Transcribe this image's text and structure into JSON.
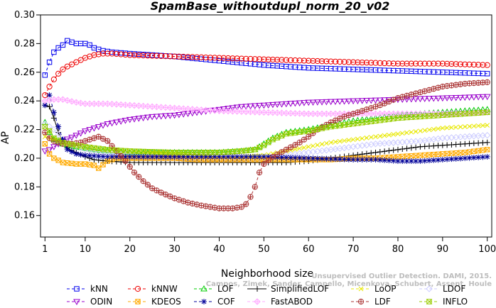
{
  "chart_data": {
    "type": "line",
    "title": "SpamBase_withoutdupl_norm_20_v02",
    "xlabel": "Neighborhood size",
    "ylabel": "AP",
    "xlim": [
      0,
      101
    ],
    "ylim": [
      0.145,
      0.3
    ],
    "xticks": [
      1,
      10,
      20,
      30,
      40,
      50,
      60,
      70,
      80,
      90,
      100
    ],
    "yticks": [
      0.16,
      0.18,
      0.2,
      0.22,
      0.24,
      0.26,
      0.28,
      0.3
    ],
    "grid": false,
    "legend_position": "bottom",
    "series": [
      {
        "name": "kNN",
        "color": "#0000ee",
        "marker": "square",
        "dash": "4,3",
        "points": [
          [
            1,
            0.258
          ],
          [
            2,
            0.267
          ],
          [
            3,
            0.274
          ],
          [
            4,
            0.277
          ],
          [
            5,
            0.279
          ],
          [
            6,
            0.282
          ],
          [
            7,
            0.281
          ],
          [
            8,
            0.28
          ],
          [
            9,
            0.28
          ],
          [
            10,
            0.28
          ],
          [
            11,
            0.279
          ],
          [
            12,
            0.277
          ],
          [
            14,
            0.275
          ],
          [
            16,
            0.274
          ],
          [
            20,
            0.273
          ],
          [
            30,
            0.271
          ],
          [
            40,
            0.268
          ],
          [
            50,
            0.265
          ],
          [
            60,
            0.263
          ],
          [
            70,
            0.262
          ],
          [
            80,
            0.261
          ],
          [
            90,
            0.26
          ],
          [
            100,
            0.259
          ]
        ]
      },
      {
        "name": "kNNW",
        "color": "#ee0000",
        "marker": "circle",
        "dash": "4,3",
        "points": [
          [
            1,
            0.244
          ],
          [
            2,
            0.25
          ],
          [
            3,
            0.255
          ],
          [
            4,
            0.259
          ],
          [
            5,
            0.262
          ],
          [
            6,
            0.264
          ],
          [
            8,
            0.267
          ],
          [
            10,
            0.27
          ],
          [
            12,
            0.272
          ],
          [
            14,
            0.273
          ],
          [
            16,
            0.273
          ],
          [
            20,
            0.272
          ],
          [
            30,
            0.271
          ],
          [
            40,
            0.27
          ],
          [
            50,
            0.269
          ],
          [
            60,
            0.268
          ],
          [
            70,
            0.267
          ],
          [
            80,
            0.266
          ],
          [
            90,
            0.266
          ],
          [
            100,
            0.265
          ]
        ]
      },
      {
        "name": "LOF",
        "color": "#00cc00",
        "marker": "triangle-up",
        "dash": "4,3",
        "points": [
          [
            1,
            0.225
          ],
          [
            2,
            0.218
          ],
          [
            3,
            0.213
          ],
          [
            5,
            0.21
          ],
          [
            8,
            0.208
          ],
          [
            12,
            0.206
          ],
          [
            16,
            0.205
          ],
          [
            20,
            0.204
          ],
          [
            25,
            0.204
          ],
          [
            30,
            0.204
          ],
          [
            35,
            0.204
          ],
          [
            40,
            0.204
          ],
          [
            45,
            0.205
          ],
          [
            48,
            0.206
          ],
          [
            50,
            0.21
          ],
          [
            52,
            0.214
          ],
          [
            55,
            0.218
          ],
          [
            60,
            0.22
          ],
          [
            65,
            0.223
          ],
          [
            70,
            0.226
          ],
          [
            75,
            0.228
          ],
          [
            80,
            0.23
          ],
          [
            85,
            0.231
          ],
          [
            90,
            0.232
          ],
          [
            95,
            0.233
          ],
          [
            100,
            0.234
          ]
        ]
      },
      {
        "name": "SimplifiedLOF",
        "color": "#000000",
        "marker": "plus",
        "dash": "",
        "points": [
          [
            1,
            0.237
          ],
          [
            2,
            0.236
          ],
          [
            3,
            0.228
          ],
          [
            4,
            0.218
          ],
          [
            5,
            0.212
          ],
          [
            6,
            0.207
          ],
          [
            8,
            0.204
          ],
          [
            10,
            0.201
          ],
          [
            12,
            0.199
          ],
          [
            15,
            0.198
          ],
          [
            20,
            0.197
          ],
          [
            25,
            0.197
          ],
          [
            30,
            0.197
          ],
          [
            35,
            0.197
          ],
          [
            40,
            0.197
          ],
          [
            45,
            0.197
          ],
          [
            50,
            0.197
          ],
          [
            55,
            0.197
          ],
          [
            60,
            0.198
          ],
          [
            65,
            0.2
          ],
          [
            70,
            0.202
          ],
          [
            75,
            0.204
          ],
          [
            80,
            0.206
          ],
          [
            85,
            0.208
          ],
          [
            90,
            0.209
          ],
          [
            95,
            0.21
          ],
          [
            100,
            0.211
          ]
        ]
      },
      {
        "name": "LoOP",
        "color": "#e8e800",
        "marker": "cross",
        "dash": "4,3",
        "points": [
          [
            1,
            0.215
          ],
          [
            3,
            0.213
          ],
          [
            5,
            0.211
          ],
          [
            10,
            0.208
          ],
          [
            15,
            0.206
          ],
          [
            20,
            0.205
          ],
          [
            30,
            0.203
          ],
          [
            40,
            0.201
          ],
          [
            45,
            0.201
          ],
          [
            50,
            0.202
          ],
          [
            55,
            0.205
          ],
          [
            60,
            0.208
          ],
          [
            65,
            0.211
          ],
          [
            70,
            0.213
          ],
          [
            75,
            0.215
          ],
          [
            80,
            0.217
          ],
          [
            85,
            0.219
          ],
          [
            90,
            0.221
          ],
          [
            95,
            0.222
          ],
          [
            100,
            0.223
          ]
        ]
      },
      {
        "name": "LDOF",
        "color": "#ccccff",
        "marker": "diamond",
        "dash": "4,3",
        "points": [
          [
            1,
            0.224
          ],
          [
            3,
            0.22
          ],
          [
            5,
            0.213
          ],
          [
            10,
            0.206
          ],
          [
            15,
            0.204
          ],
          [
            20,
            0.202
          ],
          [
            30,
            0.2
          ],
          [
            40,
            0.199
          ],
          [
            50,
            0.2
          ],
          [
            55,
            0.202
          ],
          [
            60,
            0.204
          ],
          [
            65,
            0.206
          ],
          [
            70,
            0.208
          ],
          [
            75,
            0.21
          ],
          [
            80,
            0.211
          ],
          [
            85,
            0.212
          ],
          [
            90,
            0.214
          ],
          [
            95,
            0.215
          ],
          [
            100,
            0.216
          ]
        ]
      },
      {
        "name": "ODIN",
        "color": "#9900cc",
        "marker": "triangle-down",
        "dash": "4,3",
        "points": [
          [
            1,
            0.205
          ],
          [
            2,
            0.206
          ],
          [
            3,
            0.208
          ],
          [
            5,
            0.212
          ],
          [
            8,
            0.216
          ],
          [
            10,
            0.219
          ],
          [
            12,
            0.221
          ],
          [
            15,
            0.224
          ],
          [
            20,
            0.227
          ],
          [
            25,
            0.229
          ],
          [
            30,
            0.23
          ],
          [
            35,
            0.232
          ],
          [
            40,
            0.234
          ],
          [
            45,
            0.236
          ],
          [
            50,
            0.237
          ],
          [
            55,
            0.238
          ],
          [
            60,
            0.239
          ],
          [
            70,
            0.24
          ],
          [
            80,
            0.241
          ],
          [
            90,
            0.242
          ],
          [
            100,
            0.243
          ]
        ]
      },
      {
        "name": "KDEOS",
        "color": "#ffaa00",
        "marker": "square-x",
        "dash": "4,3",
        "points": [
          [
            1,
            0.21
          ],
          [
            2,
            0.203
          ],
          [
            3,
            0.2
          ],
          [
            5,
            0.197
          ],
          [
            8,
            0.196
          ],
          [
            10,
            0.196
          ],
          [
            12,
            0.195
          ],
          [
            13,
            0.193
          ],
          [
            15,
            0.198
          ],
          [
            17,
            0.2
          ],
          [
            20,
            0.2
          ],
          [
            25,
            0.2
          ],
          [
            30,
            0.2
          ],
          [
            35,
            0.199
          ],
          [
            40,
            0.199
          ],
          [
            45,
            0.199
          ],
          [
            50,
            0.199
          ],
          [
            55,
            0.199
          ],
          [
            60,
            0.199
          ],
          [
            65,
            0.199
          ],
          [
            70,
            0.2
          ],
          [
            75,
            0.2
          ],
          [
            80,
            0.201
          ],
          [
            85,
            0.202
          ],
          [
            90,
            0.203
          ],
          [
            95,
            0.204
          ],
          [
            100,
            0.206
          ]
        ]
      },
      {
        "name": "COF",
        "color": "#000099",
        "marker": "star",
        "dash": "4,3",
        "points": [
          [
            1,
            0.237
          ],
          [
            2,
            0.244
          ],
          [
            3,
            0.232
          ],
          [
            4,
            0.222
          ],
          [
            5,
            0.213
          ],
          [
            6,
            0.206
          ],
          [
            8,
            0.203
          ],
          [
            10,
            0.202
          ],
          [
            15,
            0.201
          ],
          [
            20,
            0.201
          ],
          [
            30,
            0.201
          ],
          [
            40,
            0.201
          ],
          [
            50,
            0.201
          ],
          [
            60,
            0.2
          ],
          [
            70,
            0.199
          ],
          [
            75,
            0.199
          ],
          [
            80,
            0.198
          ],
          [
            85,
            0.198
          ],
          [
            90,
            0.199
          ],
          [
            95,
            0.2
          ],
          [
            100,
            0.201
          ]
        ]
      },
      {
        "name": "FastABOD",
        "color": "#ffaaff",
        "marker": "diamond-plus",
        "dash": "4,3",
        "points": [
          [
            1,
            0.24
          ],
          [
            3,
            0.241
          ],
          [
            5,
            0.241
          ],
          [
            8,
            0.239
          ],
          [
            10,
            0.238
          ],
          [
            15,
            0.238
          ],
          [
            20,
            0.237
          ],
          [
            25,
            0.236
          ],
          [
            30,
            0.235
          ],
          [
            40,
            0.233
          ],
          [
            50,
            0.232
          ],
          [
            60,
            0.231
          ],
          [
            70,
            0.231
          ],
          [
            80,
            0.231
          ],
          [
            90,
            0.231
          ],
          [
            100,
            0.232
          ]
        ]
      },
      {
        "name": "LDF",
        "color": "#aa3333",
        "marker": "circle-plus",
        "dash": "4,3",
        "points": [
          [
            1,
            0.218
          ],
          [
            2,
            0.214
          ],
          [
            3,
            0.212
          ],
          [
            5,
            0.21
          ],
          [
            7,
            0.21
          ],
          [
            9,
            0.211
          ],
          [
            11,
            0.213
          ],
          [
            13,
            0.215
          ],
          [
            15,
            0.212
          ],
          [
            17,
            0.205
          ],
          [
            19,
            0.198
          ],
          [
            21,
            0.19
          ],
          [
            23,
            0.184
          ],
          [
            25,
            0.179
          ],
          [
            27,
            0.176
          ],
          [
            30,
            0.172
          ],
          [
            33,
            0.169
          ],
          [
            36,
            0.167
          ],
          [
            40,
            0.165
          ],
          [
            43,
            0.165
          ],
          [
            45,
            0.166
          ],
          [
            46,
            0.168
          ],
          [
            47,
            0.173
          ],
          [
            48,
            0.18
          ],
          [
            49,
            0.19
          ],
          [
            50,
            0.196
          ],
          [
            52,
            0.201
          ],
          [
            55,
            0.206
          ],
          [
            58,
            0.211
          ],
          [
            60,
            0.215
          ],
          [
            62,
            0.22
          ],
          [
            65,
            0.225
          ],
          [
            68,
            0.229
          ],
          [
            70,
            0.231
          ],
          [
            73,
            0.234
          ],
          [
            76,
            0.237
          ],
          [
            80,
            0.242
          ],
          [
            85,
            0.246
          ],
          [
            90,
            0.25
          ],
          [
            95,
            0.252
          ],
          [
            100,
            0.253
          ]
        ]
      },
      {
        "name": "INFLO",
        "color": "#99cc00",
        "marker": "hourglass",
        "dash": "4,3",
        "points": [
          [
            1,
            0.222
          ],
          [
            2,
            0.219
          ],
          [
            3,
            0.214
          ],
          [
            5,
            0.211
          ],
          [
            8,
            0.209
          ],
          [
            10,
            0.208
          ],
          [
            15,
            0.206
          ],
          [
            20,
            0.205
          ],
          [
            30,
            0.204
          ],
          [
            40,
            0.204
          ],
          [
            45,
            0.205
          ],
          [
            48,
            0.206
          ],
          [
            50,
            0.209
          ],
          [
            52,
            0.213
          ],
          [
            55,
            0.217
          ],
          [
            60,
            0.219
          ],
          [
            65,
            0.222
          ],
          [
            70,
            0.224
          ],
          [
            75,
            0.226
          ],
          [
            80,
            0.228
          ],
          [
            85,
            0.229
          ],
          [
            90,
            0.23
          ],
          [
            95,
            0.231
          ],
          [
            100,
            0.232
          ]
        ]
      }
    ]
  },
  "legend_rows": [
    [
      "kNN",
      "kNNW",
      "LOF",
      "SimplifiedLOF",
      "LoOP",
      "LDOF"
    ],
    [
      "ODIN",
      "KDEOS",
      "COF",
      "FastABOD",
      "LDF",
      "INFLO"
    ]
  ],
  "watermark": {
    "line1": "Unsupervised Outlier Detection. DAMI, 2015.",
    "line2": "Campos, Zimek, Sander, Campello, Micenkova, Schubert, Assent, Houle"
  }
}
